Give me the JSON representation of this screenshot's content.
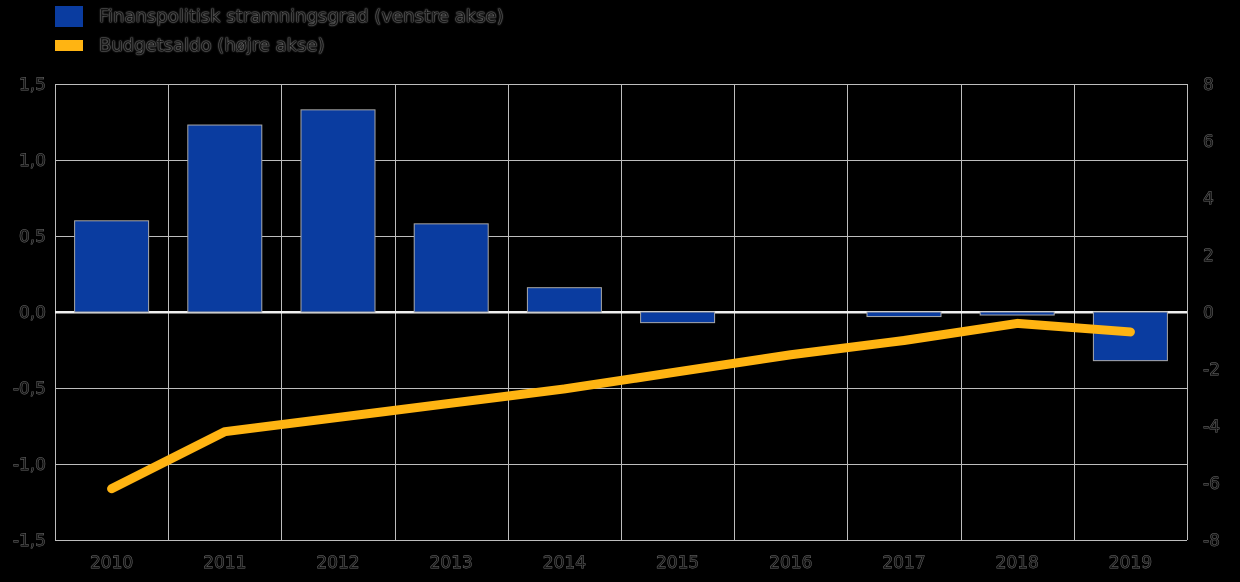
{
  "colors": {
    "background": "#000000",
    "grid": "#bdbdbd",
    "zero_line": "#f0f0f0",
    "bar_fill": "#0A3CA0",
    "bar_border": "#a8a8a8",
    "line": "#FFB412",
    "text": "#161616"
  },
  "legend": {
    "items": [
      {
        "label": "Finanspolitisk stramningsgrad (venstre akse)",
        "color": "#0A3CA0",
        "marker": "bar"
      },
      {
        "label": "Budgetsaldo (højre akse)",
        "color": "#FFB412",
        "marker": "line"
      }
    ]
  },
  "chart_data": {
    "type": "bar+line",
    "title": "",
    "xlabel": "",
    "ylabel": "",
    "grid": true,
    "legend_position": "top-left",
    "categories": [
      "2010",
      "2011",
      "2012",
      "2013",
      "2014",
      "2015",
      "2016",
      "2017",
      "2018",
      "2019"
    ],
    "series": [
      {
        "name": "Finanspolitisk stramningsgrad (venstre akse)",
        "type": "bar",
        "axis": "left",
        "color": "#0A3CA0",
        "values": [
          0.6,
          1.23,
          1.33,
          0.58,
          0.16,
          -0.07,
          0.0,
          -0.03,
          -0.02,
          -0.32
        ]
      },
      {
        "name": "Budgetsaldo (højre akse)",
        "type": "line",
        "axis": "right",
        "color": "#FFB412",
        "values": [
          -6.2,
          -4.2,
          -3.7,
          -3.2,
          -2.7,
          -2.1,
          -1.5,
          -1.0,
          -0.4,
          -0.7
        ]
      }
    ],
    "left_axis": {
      "min": -1.5,
      "max": 1.5,
      "ticks": [
        "1,5",
        "1,0",
        "0,5",
        "0,0",
        "-0,5",
        "-1,0",
        "-1,5"
      ]
    },
    "right_axis": {
      "min": -8,
      "max": 8,
      "ticks": [
        "8",
        "6",
        "4",
        "2",
        "0",
        "-2",
        "-4",
        "-6",
        "-8"
      ]
    }
  }
}
